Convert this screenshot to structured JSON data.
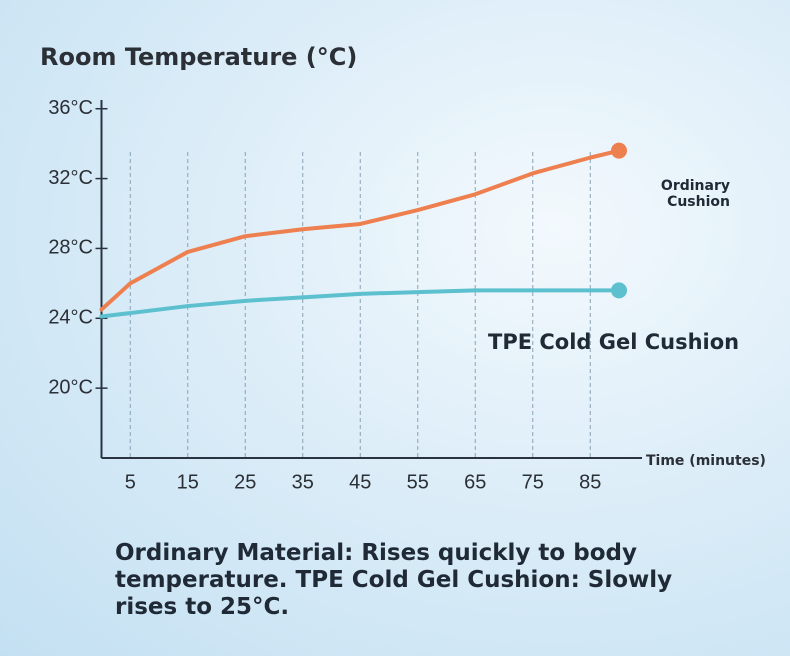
{
  "chart_data": {
    "type": "line",
    "title": "Room Temperature (°C)",
    "x_label": "Time (minutes)",
    "x": [
      0,
      5,
      15,
      25,
      35,
      45,
      55,
      65,
      75,
      85,
      90
    ],
    "series": [
      {
        "name": "Ordinary Cushion",
        "color": "#ee7f4e",
        "values": [
          24.5,
          26,
          27.8,
          28.7,
          29.1,
          29.4,
          30.2,
          31.1,
          32.3,
          33.2,
          33.6
        ]
      },
      {
        "name": "TPE Cold Gel Cushion",
        "color": "#5cc0cf",
        "values": [
          24.1,
          24.3,
          24.7,
          25,
          25.2,
          25.4,
          25.5,
          25.6,
          25.6,
          25.6,
          25.6
        ]
      }
    ],
    "xlim": [
      0,
      94
    ],
    "ylim": [
      16,
      36.5
    ],
    "xticks": [
      5,
      15,
      25,
      35,
      45,
      55,
      65,
      75,
      85
    ],
    "yticks": [
      {
        "value": 20,
        "label": "20°C"
      },
      {
        "value": 24,
        "label": "24°C"
      },
      {
        "value": 28,
        "label": "28°C"
      },
      {
        "value": 32,
        "label": "32°C"
      },
      {
        "value": 36,
        "label": "36°C"
      }
    ],
    "grid": true,
    "caption": "Ordinary Material: Rises quickly to body temperature. TPE Cold Gel Cushion: Slowly rises to 25°C."
  }
}
